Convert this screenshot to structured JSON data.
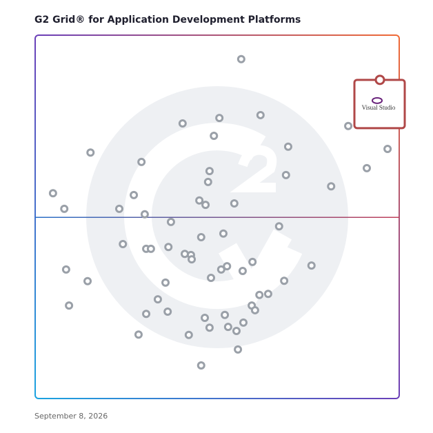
{
  "chart_data": {
    "type": "scatter",
    "title": "G2 Grid® for Application Development Platforms",
    "date": "September 8, 2026",
    "xlim": [
      0,
      100
    ],
    "ylim": [
      0,
      100
    ],
    "point_color": "#9aa0a8",
    "x": [
      56.6,
      61.9,
      50.6,
      40.5,
      49.1,
      69.5,
      15.2,
      29.2,
      47.9,
      68.9,
      47.5,
      81.3,
      4.9,
      27.1,
      45.1,
      46.8,
      54.7,
      8.0,
      23.1,
      30.1,
      37.3,
      67.0,
      51.7,
      45.6,
      24.1,
      30.5,
      31.8,
      36.6,
      41.1,
      42.8,
      43.0,
      59.7,
      52.7,
      51.1,
      57.0,
      75.9,
      8.5,
      48.3,
      68.4,
      14.4,
      35.8,
      64.0,
      61.6,
      33.7,
      59.5,
      60.4,
      9.3,
      36.4,
      30.5,
      52.1,
      46.6,
      57.2,
      47.9,
      53.0,
      55.3,
      28.4,
      42.2,
      55.7,
      45.6,
      86.0,
      96.8,
      91.1
    ],
    "values": [
      93.4,
      78.0,
      77.2,
      75.7,
      72.3,
      69.3,
      67.7,
      65.1,
      62.6,
      61.5,
      59.6,
      58.4,
      56.5,
      56.0,
      54.5,
      53.3,
      53.7,
      52.2,
      52.2,
      50.7,
      48.6,
      47.4,
      45.4,
      44.4,
      42.5,
      41.2,
      41.2,
      41.7,
      39.8,
      39.5,
      38.3,
      37.6,
      36.4,
      35.5,
      35.1,
      36.6,
      35.5,
      33.2,
      32.4,
      32.3,
      31.9,
      28.8,
      28.5,
      27.3,
      25.6,
      24.3,
      25.6,
      23.9,
      23.3,
      23.0,
      22.2,
      20.9,
      19.5,
      19.7,
      18.6,
      17.6,
      17.5,
      13.5,
      9.1,
      75.0,
      68.7,
      63.4
    ],
    "highlight": {
      "label": "Visual Studio",
      "x": 94.7,
      "y": 87.7,
      "color": "#b04848"
    }
  }
}
